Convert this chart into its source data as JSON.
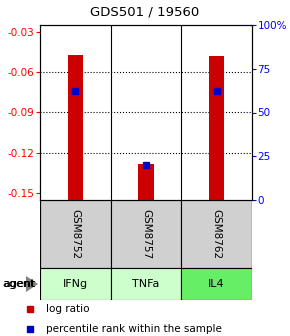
{
  "title": "GDS501 / 19560",
  "samples": [
    "GSM8752",
    "GSM8757",
    "GSM8762"
  ],
  "agents": [
    "IFNg",
    "TNFa",
    "IL4"
  ],
  "agent_colors": [
    "#ccffcc",
    "#ccffcc",
    "#66ee66"
  ],
  "ylim_left": [
    -0.155,
    -0.025
  ],
  "ylim_right": [
    0,
    100
  ],
  "yticks_left": [
    -0.15,
    -0.12,
    -0.09,
    -0.06,
    -0.03
  ],
  "yticks_right": [
    0,
    25,
    50,
    75,
    100
  ],
  "ytick_labels_left": [
    "-0.15",
    "-0.12",
    "-0.09",
    "-0.06",
    "-0.03"
  ],
  "ytick_labels_right": [
    "0",
    "25",
    "50",
    "75",
    "100%"
  ],
  "bar_bottom": -0.155,
  "bar_tops": [
    -0.047,
    -0.128,
    -0.048
  ],
  "percentile_values": [
    62,
    20,
    62
  ],
  "bar_color": "#cc0000",
  "percentile_color": "#0000cc",
  "sample_bg": "#d0d0d0",
  "legend_log_ratio": "log ratio",
  "legend_percentile": "percentile rank within the sample"
}
